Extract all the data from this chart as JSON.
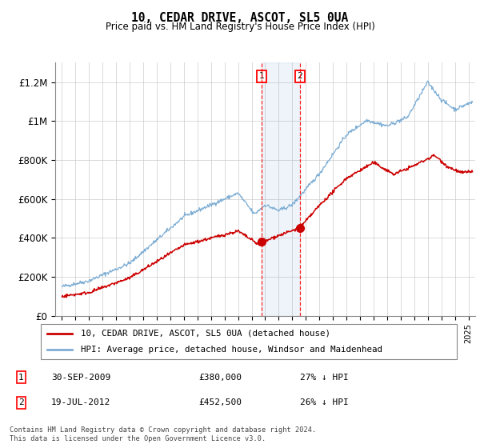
{
  "title": "10, CEDAR DRIVE, ASCOT, SL5 0UA",
  "subtitle": "Price paid vs. HM Land Registry's House Price Index (HPI)",
  "ylabel_ticks": [
    "£0",
    "£200K",
    "£400K",
    "£600K",
    "£800K",
    "£1M",
    "£1.2M"
  ],
  "ytick_values": [
    0,
    200000,
    400000,
    600000,
    800000,
    1000000,
    1200000
  ],
  "ylim": [
    0,
    1300000
  ],
  "xlim_start": 1994.5,
  "xlim_end": 2025.5,
  "hpi_color": "#7dadd4",
  "price_color": "#cc0000",
  "transaction1_x": 2009.75,
  "transaction1_y": 380000,
  "transaction2_x": 2012.55,
  "transaction2_y": 452500,
  "shade_x1": 2009.75,
  "shade_x2": 2012.55,
  "legend_label_red": "10, CEDAR DRIVE, ASCOT, SL5 0UA (detached house)",
  "legend_label_blue": "HPI: Average price, detached house, Windsor and Maidenhead",
  "footer": "Contains HM Land Registry data © Crown copyright and database right 2024.\nThis data is licensed under the Open Government Licence v3.0.",
  "background_color": "#ffffff",
  "grid_color": "#cccccc"
}
